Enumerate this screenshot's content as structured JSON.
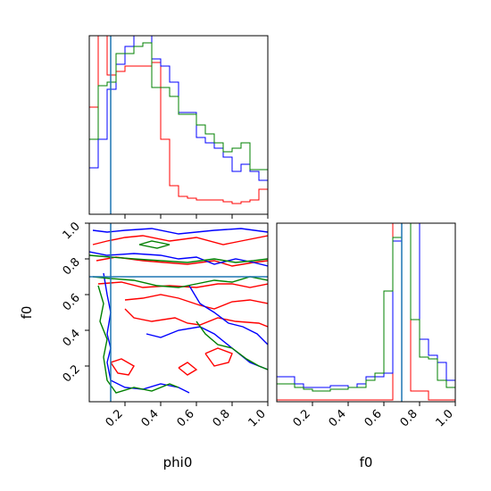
{
  "chart_data": {
    "type": "corner",
    "parameters": [
      "phi0",
      "f0"
    ],
    "truth": {
      "phi0": 0.12,
      "f0": 0.7
    },
    "colors": {
      "red": "#ff0000",
      "blue": "#0000ff",
      "green": "#008000",
      "truth": "#1f77b4"
    },
    "grid": false,
    "panels": [
      {
        "id": "hist-phi0",
        "type": "histogram",
        "x": "phi0",
        "xlim": [
          0,
          1
        ],
        "ylim": [
          0,
          1
        ],
        "xticks": [
          "0.2",
          "0.4",
          "0.6",
          "0.8",
          "1.0"
        ],
        "show_tick_labels": false,
        "bin_edges": [
          0,
          0.05,
          0.1,
          0.15,
          0.2,
          0.25,
          0.3,
          0.35,
          0.4,
          0.45,
          0.5,
          0.55,
          0.6,
          0.65,
          0.7,
          0.75,
          0.8,
          0.85,
          0.9,
          0.95,
          1.0
        ],
        "series": [
          {
            "color": "red",
            "values": [
              0.6,
              1.0,
              0.78,
              0.8,
              0.83,
              0.83,
              0.83,
              0.85,
              0.42,
              0.16,
              0.1,
              0.09,
              0.08,
              0.08,
              0.08,
              0.07,
              0.06,
              0.07,
              0.08,
              0.14
            ]
          },
          {
            "color": "blue",
            "values": [
              0.26,
              0.42,
              0.7,
              0.84,
              0.94,
              1.0,
              1.0,
              0.87,
              0.83,
              0.74,
              0.57,
              0.57,
              0.43,
              0.4,
              0.37,
              0.32,
              0.24,
              0.28,
              0.24,
              0.19
            ]
          },
          {
            "color": "green",
            "values": [
              0.42,
              0.72,
              0.74,
              0.9,
              0.9,
              0.94,
              0.96,
              0.71,
              0.71,
              0.66,
              0.56,
              0.56,
              0.5,
              0.45,
              0.4,
              0.35,
              0.37,
              0.4,
              0.25,
              0.25
            ]
          }
        ]
      },
      {
        "id": "scatter-phi0-f0",
        "type": "contour",
        "x": "phi0",
        "y": "f0",
        "xlim": [
          0,
          1
        ],
        "ylim": [
          0,
          1
        ],
        "xticks": [
          "0.2",
          "0.4",
          "0.6",
          "0.8",
          "1.0"
        ],
        "yticks": [
          "0.2",
          "0.4",
          "0.6",
          "0.8",
          "1.0"
        ],
        "xlabel": "phi0",
        "ylabel": "f0",
        "contours": [
          {
            "color": "red",
            "points": [
              [
                0.02,
                0.88
              ],
              [
                0.1,
                0.9
              ],
              [
                0.2,
                0.92
              ],
              [
                0.3,
                0.93
              ],
              [
                0.45,
                0.9
              ],
              [
                0.6,
                0.92
              ],
              [
                0.75,
                0.88
              ],
              [
                0.85,
                0.9
              ],
              [
                1.0,
                0.93
              ]
            ]
          },
          {
            "color": "red",
            "points": [
              [
                0.04,
                0.79
              ],
              [
                0.15,
                0.81
              ],
              [
                0.3,
                0.79
              ],
              [
                0.42,
                0.78
              ],
              [
                0.55,
                0.77
              ],
              [
                0.7,
                0.79
              ],
              [
                0.8,
                0.76
              ],
              [
                0.92,
                0.78
              ],
              [
                1.0,
                0.79
              ]
            ]
          },
          {
            "color": "red",
            "points": [
              [
                0.05,
                0.66
              ],
              [
                0.18,
                0.67
              ],
              [
                0.3,
                0.64
              ],
              [
                0.45,
                0.65
              ],
              [
                0.6,
                0.64
              ],
              [
                0.72,
                0.66
              ],
              [
                0.8,
                0.66
              ],
              [
                0.9,
                0.64
              ],
              [
                1.0,
                0.66
              ]
            ]
          },
          {
            "color": "red",
            "points": [
              [
                0.2,
                0.57
              ],
              [
                0.3,
                0.58
              ],
              [
                0.4,
                0.6
              ],
              [
                0.5,
                0.58
              ],
              [
                0.62,
                0.54
              ],
              [
                0.7,
                0.52
              ],
              [
                0.8,
                0.56
              ],
              [
                0.9,
                0.57
              ],
              [
                1.0,
                0.55
              ]
            ]
          },
          {
            "color": "red",
            "points": [
              [
                0.2,
                0.52
              ],
              [
                0.25,
                0.47
              ],
              [
                0.35,
                0.45
              ],
              [
                0.48,
                0.47
              ],
              [
                0.55,
                0.44
              ],
              [
                0.62,
                0.43
              ],
              [
                0.72,
                0.47
              ],
              [
                0.82,
                0.45
              ],
              [
                0.95,
                0.44
              ],
              [
                1.0,
                0.42
              ]
            ]
          },
          {
            "color": "red",
            "points": [
              [
                0.12,
                0.22
              ],
              [
                0.18,
                0.24
              ],
              [
                0.25,
                0.2
              ],
              [
                0.22,
                0.15
              ],
              [
                0.16,
                0.16
              ],
              [
                0.12,
                0.22
              ]
            ]
          },
          {
            "color": "red",
            "points": [
              [
                0.5,
                0.19
              ],
              [
                0.55,
                0.22
              ],
              [
                0.6,
                0.18
              ],
              [
                0.55,
                0.15
              ],
              [
                0.5,
                0.19
              ]
            ]
          },
          {
            "color": "red",
            "points": [
              [
                0.65,
                0.27
              ],
              [
                0.72,
                0.3
              ],
              [
                0.8,
                0.27
              ],
              [
                0.78,
                0.22
              ],
              [
                0.7,
                0.2
              ],
              [
                0.65,
                0.27
              ]
            ]
          },
          {
            "color": "blue",
            "points": [
              [
                0.02,
                0.96
              ],
              [
                0.1,
                0.95
              ],
              [
                0.2,
                0.96
              ],
              [
                0.35,
                0.97
              ],
              [
                0.5,
                0.94
              ],
              [
                0.7,
                0.96
              ],
              [
                0.85,
                0.97
              ],
              [
                1.0,
                0.95
              ]
            ]
          },
          {
            "color": "blue",
            "points": [
              [
                0.0,
                0.84
              ],
              [
                0.1,
                0.82
              ],
              [
                0.25,
                0.83
              ],
              [
                0.4,
                0.82
              ],
              [
                0.5,
                0.8
              ],
              [
                0.6,
                0.81
              ],
              [
                0.7,
                0.77
              ],
              [
                0.82,
                0.8
              ],
              [
                0.92,
                0.78
              ],
              [
                1.0,
                0.76
              ]
            ]
          },
          {
            "color": "blue",
            "points": [
              [
                0.08,
                0.72
              ],
              [
                0.1,
                0.6
              ],
              [
                0.12,
                0.5
              ],
              [
                0.1,
                0.38
              ],
              [
                0.12,
                0.3
              ],
              [
                0.1,
                0.22
              ],
              [
                0.12,
                0.12
              ],
              [
                0.2,
                0.08
              ],
              [
                0.3,
                0.07
              ],
              [
                0.4,
                0.1
              ],
              [
                0.5,
                0.08
              ],
              [
                0.56,
                0.05
              ]
            ]
          },
          {
            "color": "blue",
            "points": [
              [
                0.32,
                0.38
              ],
              [
                0.4,
                0.36
              ],
              [
                0.5,
                0.4
              ],
              [
                0.62,
                0.42
              ],
              [
                0.7,
                0.38
              ],
              [
                0.8,
                0.3
              ],
              [
                0.9,
                0.22
              ],
              [
                1.0,
                0.18
              ]
            ]
          },
          {
            "color": "blue",
            "points": [
              [
                0.56,
                0.65
              ],
              [
                0.62,
                0.55
              ],
              [
                0.7,
                0.5
              ],
              [
                0.78,
                0.44
              ],
              [
                0.86,
                0.42
              ],
              [
                0.94,
                0.38
              ],
              [
                1.0,
                0.32
              ]
            ]
          },
          {
            "color": "green",
            "points": [
              [
                0.0,
                0.82
              ],
              [
                0.12,
                0.81
              ],
              [
                0.25,
                0.8
              ],
              [
                0.4,
                0.79
              ],
              [
                0.55,
                0.78
              ],
              [
                0.7,
                0.8
              ],
              [
                0.82,
                0.78
              ],
              [
                0.92,
                0.79
              ],
              [
                1.0,
                0.8
              ]
            ]
          },
          {
            "color": "green",
            "points": [
              [
                0.02,
                0.7
              ],
              [
                0.12,
                0.69
              ],
              [
                0.25,
                0.68
              ],
              [
                0.38,
                0.65
              ],
              [
                0.5,
                0.64
              ],
              [
                0.6,
                0.66
              ],
              [
                0.7,
                0.68
              ],
              [
                0.8,
                0.67
              ],
              [
                0.9,
                0.7
              ],
              [
                1.0,
                0.68
              ]
            ]
          },
          {
            "color": "green",
            "points": [
              [
                0.05,
                0.65
              ],
              [
                0.08,
                0.55
              ],
              [
                0.06,
                0.45
              ],
              [
                0.1,
                0.35
              ],
              [
                0.08,
                0.25
              ],
              [
                0.1,
                0.12
              ],
              [
                0.15,
                0.05
              ],
              [
                0.25,
                0.08
              ],
              [
                0.35,
                0.06
              ],
              [
                0.45,
                0.1
              ],
              [
                0.5,
                0.08
              ]
            ]
          },
          {
            "color": "green",
            "points": [
              [
                0.6,
                0.45
              ],
              [
                0.65,
                0.38
              ],
              [
                0.72,
                0.32
              ],
              [
                0.8,
                0.3
              ],
              [
                0.88,
                0.24
              ],
              [
                0.95,
                0.2
              ],
              [
                1.0,
                0.18
              ]
            ]
          },
          {
            "color": "green",
            "points": [
              [
                0.28,
                0.88
              ],
              [
                0.35,
                0.9
              ],
              [
                0.45,
                0.88
              ],
              [
                0.38,
                0.86
              ],
              [
                0.28,
                0.88
              ]
            ]
          }
        ]
      },
      {
        "id": "hist-f0",
        "type": "histogram",
        "x": "f0",
        "xlim": [
          0,
          1
        ],
        "ylim": [
          0,
          1
        ],
        "xticks": [
          "0.2",
          "0.4",
          "0.6",
          "0.8",
          "1.0"
        ],
        "xlabel": "f0",
        "bin_edges": [
          0,
          0.05,
          0.1,
          0.15,
          0.2,
          0.25,
          0.3,
          0.35,
          0.4,
          0.45,
          0.5,
          0.55,
          0.6,
          0.65,
          0.7,
          0.75,
          0.8,
          0.85,
          0.9,
          0.95,
          1.0
        ],
        "series": [
          {
            "color": "red",
            "values": [
              0.01,
              0.01,
              0.01,
              0.01,
              0.01,
              0.01,
              0.01,
              0.01,
              0.01,
              0.01,
              0.01,
              0.01,
              0.01,
              1.0,
              1.0,
              0.06,
              0.06,
              0.01,
              0.01,
              0.01
            ]
          },
          {
            "color": "blue",
            "values": [
              0.14,
              0.14,
              0.1,
              0.08,
              0.08,
              0.08,
              0.09,
              0.09,
              0.08,
              0.1,
              0.14,
              0.14,
              0.16,
              0.9,
              1.0,
              1.0,
              0.35,
              0.26,
              0.22,
              0.12
            ]
          },
          {
            "color": "green",
            "values": [
              0.1,
              0.1,
              0.08,
              0.07,
              0.06,
              0.06,
              0.07,
              0.07,
              0.08,
              0.08,
              0.12,
              0.16,
              0.62,
              0.92,
              1.0,
              0.46,
              0.25,
              0.24,
              0.12,
              0.08
            ]
          }
        ]
      }
    ]
  }
}
